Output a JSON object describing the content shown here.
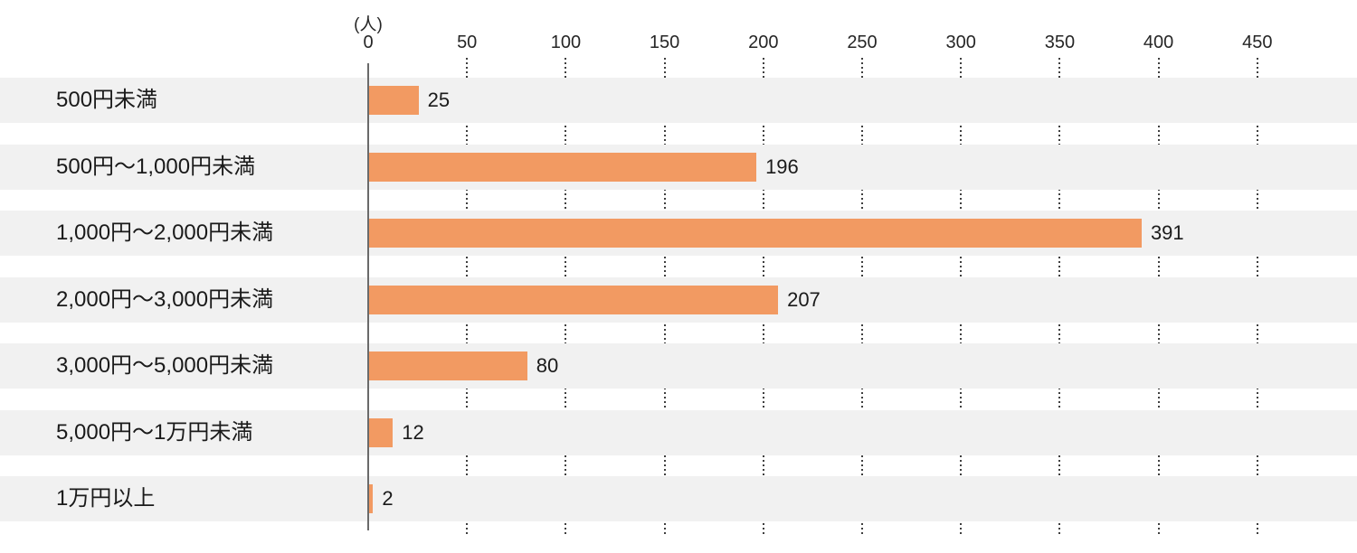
{
  "chart_data": {
    "type": "bar",
    "orientation": "horizontal",
    "title": "",
    "unit_label": "(人)",
    "xlabel": "",
    "ylabel": "",
    "categories": [
      "500円未満",
      "500円〜1,000円未満",
      "1,000円〜2,000円未満",
      "2,000円〜3,000円未満",
      "3,000円〜5,000円未満",
      "5,000円〜1万円未満",
      "1万円以上"
    ],
    "values": [
      25,
      196,
      391,
      207,
      80,
      12,
      2
    ],
    "x_ticks": [
      0,
      50,
      100,
      150,
      200,
      250,
      300,
      350,
      400,
      450
    ],
    "xlim": [
      0,
      500
    ],
    "grid": "dotted-vertical",
    "legend": "none",
    "colors": {
      "bar": "#F29A62",
      "row_band": "#F1F1F1",
      "axis_line": "#6A6A6A",
      "gridline_dots": "#3F3F3F",
      "text": "#1A1A1A"
    }
  }
}
